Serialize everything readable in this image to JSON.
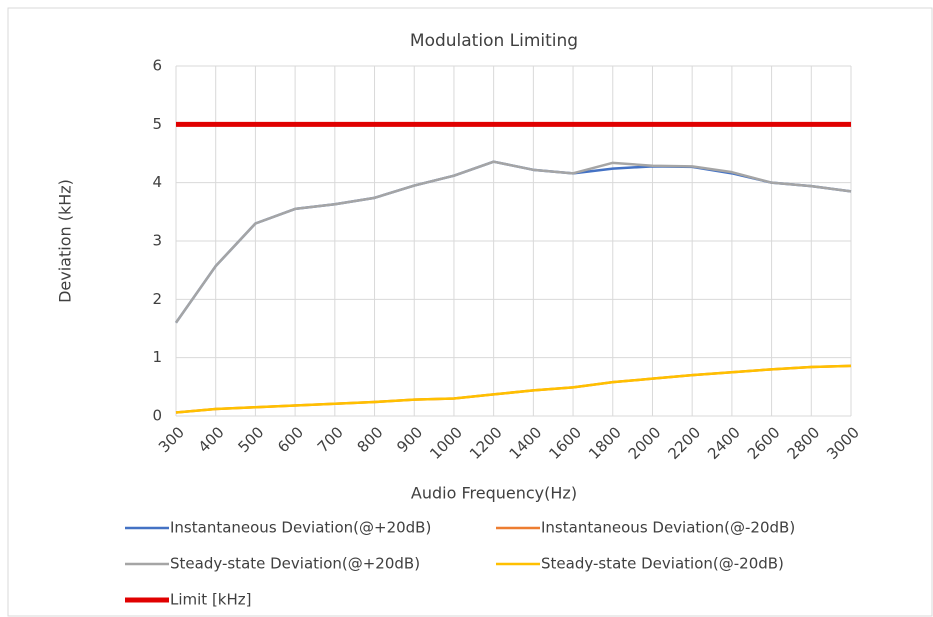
{
  "chart_data": {
    "type": "line",
    "title": "Modulation  Limiting",
    "x_label": "Audio  Frequency(Hz)",
    "y_label": "Deviation  (kHz)",
    "categories": [
      "300",
      "400",
      "500",
      "600",
      "700",
      "800",
      "900",
      "1000",
      "1200",
      "1400",
      "1600",
      "1800",
      "2000",
      "2200",
      "2400",
      "2600",
      "2800",
      "3000"
    ],
    "series": [
      {
        "name": "Instantaneous Deviation(@+20dB)",
        "color": "#4472c4",
        "values": [
          1.6,
          2.57,
          3.3,
          3.55,
          3.63,
          3.74,
          3.95,
          4.12,
          4.36,
          4.22,
          4.16,
          4.24,
          4.28,
          4.27,
          4.16,
          4.0,
          3.94,
          3.85
        ]
      },
      {
        "name": "Instantaneous Deviation(@-20dB)",
        "color": "#ed7d31",
        "values": [
          0.06,
          0.12,
          0.15,
          0.18,
          0.21,
          0.24,
          0.28,
          0.3,
          0.37,
          0.44,
          0.49,
          0.58,
          0.64,
          0.7,
          0.75,
          0.8,
          0.84,
          0.86
        ]
      },
      {
        "name": "Steady-state Deviation(@+20dB)",
        "color": "#a5a5a5",
        "values": [
          1.6,
          2.57,
          3.3,
          3.55,
          3.63,
          3.74,
          3.95,
          4.12,
          4.36,
          4.22,
          4.16,
          4.34,
          4.29,
          4.28,
          4.18,
          4.0,
          3.94,
          3.85
        ]
      },
      {
        "name": "Steady-state Deviation(@-20dB)",
        "color": "#ffc000",
        "values": [
          0.06,
          0.12,
          0.15,
          0.18,
          0.21,
          0.24,
          0.28,
          0.3,
          0.37,
          0.44,
          0.49,
          0.58,
          0.64,
          0.7,
          0.75,
          0.8,
          0.84,
          0.86
        ]
      },
      {
        "name": "Limit  [kHz]",
        "color": "#e00000",
        "values": [
          5,
          5,
          5,
          5,
          5,
          5,
          5,
          5,
          5,
          5,
          5,
          5,
          5,
          5,
          5,
          5,
          5,
          5
        ]
      }
    ],
    "ylim": [
      0,
      6
    ],
    "yticks": [
      0,
      1,
      2,
      3,
      4,
      5,
      6
    ],
    "grid": true
  }
}
